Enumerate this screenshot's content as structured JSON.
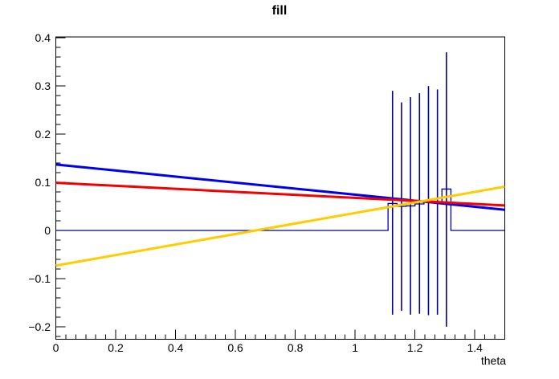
{
  "window": {
    "background": "#ffffff"
  },
  "chart_data": {
    "type": "line",
    "title": "fill",
    "xlabel": "theta",
    "ylabel": "",
    "xlim": [
      0,
      1.5
    ],
    "ylim": [
      -0.226,
      0.402
    ],
    "grid": false,
    "legend": false,
    "axis_color": "#000000",
    "x_ticks": {
      "major": [
        0,
        0.2,
        0.4,
        0.6,
        0.8,
        1,
        1.2,
        1.4
      ],
      "labels": [
        "0",
        "0.2",
        "0.4",
        "0.6",
        "0.8",
        "1",
        "1.2",
        "1.4"
      ],
      "minor_step": 0.0333333
    },
    "y_ticks": {
      "major": [
        -0.2,
        -0.1,
        0,
        0.1,
        0.2,
        0.3,
        0.4
      ],
      "labels": [
        "−0.2",
        "−0.1",
        "0",
        "0.1",
        "0.2",
        "0.3",
        "0.4"
      ],
      "minor_step": 0.02
    },
    "series": [
      {
        "name": "blue-line",
        "color": "#0000f0",
        "width": 3,
        "x": [
          0,
          1.5
        ],
        "y": [
          0.137,
          0.043
        ]
      },
      {
        "name": "red-line",
        "color": "#f40000",
        "width": 3,
        "x": [
          0,
          1.5
        ],
        "y": [
          0.099,
          0.052
        ]
      },
      {
        "name": "yellow-line",
        "color": "#ffcc00",
        "width": 3,
        "x": [
          0,
          1.5
        ],
        "y": [
          -0.073,
          0.091
        ]
      }
    ],
    "histogram": {
      "name": "error-histogram",
      "color": "#000099",
      "baseline": 0,
      "x_range": [
        0,
        1.5
      ],
      "bin_width": 0.03,
      "bins": [
        {
          "center": 1.125,
          "value": 0.056,
          "err_low": -0.175,
          "err_high": 0.29
        },
        {
          "center": 1.155,
          "value": 0.05,
          "err_low": -0.167,
          "err_high": 0.266
        },
        {
          "center": 1.185,
          "value": 0.051,
          "err_low": -0.175,
          "err_high": 0.277
        },
        {
          "center": 1.215,
          "value": 0.055,
          "err_low": -0.173,
          "err_high": 0.285
        },
        {
          "center": 1.245,
          "value": 0.06,
          "err_low": -0.176,
          "err_high": 0.3
        },
        {
          "center": 1.275,
          "value": 0.059,
          "err_low": -0.175,
          "err_high": 0.293
        },
        {
          "center": 1.305,
          "value": 0.086,
          "err_low": -0.2,
          "err_high": 0.37
        }
      ]
    }
  }
}
